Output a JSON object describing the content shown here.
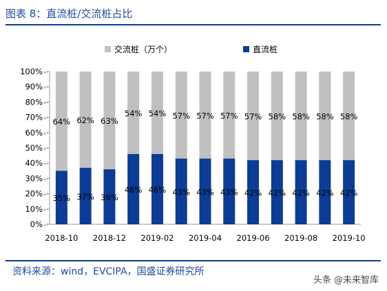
{
  "header": {
    "title": "图表 8：直流桩/交流桩占比"
  },
  "footer": {
    "source": "资料来源：wind，EVCIPA，国盛证券研究所"
  },
  "watermark": {
    "text": "头条 @未来智库"
  },
  "colors": {
    "ac": "#c0c0c0",
    "dc": "#0c3c94",
    "rule": "#0b3a8c",
    "titleText": "#1f4a9c"
  },
  "chart_data": {
    "type": "bar",
    "stacked": true,
    "categories": [
      "2018-10",
      "2018-11",
      "2018-12",
      "2019-01",
      "2019-02",
      "2019-03",
      "2019-04",
      "2019-05",
      "2019-06",
      "2019-07",
      "2019-08",
      "2019-09",
      "2019-10"
    ],
    "x_tick_labels": [
      "2018-10",
      "2018-12",
      "2019-02",
      "2019-04",
      "2019-06",
      "2019-08",
      "2019-10"
    ],
    "series": [
      {
        "name": "直流桩",
        "values": [
          35,
          37,
          36,
          46,
          46,
          43,
          43,
          43,
          42,
          42,
          42,
          42,
          42
        ],
        "color": "#0c3c94"
      },
      {
        "name": "交流桩（万个）",
        "values": [
          64,
          62,
          63,
          54,
          54,
          57,
          57,
          57,
          57,
          58,
          58,
          58,
          58
        ],
        "color": "#c0c0c0"
      }
    ],
    "y_ticks": [
      "0%",
      "10%",
      "20%",
      "30%",
      "40%",
      "50%",
      "60%",
      "70%",
      "80%",
      "90%",
      "100%"
    ],
    "ylim": [
      0,
      100
    ],
    "legend_position": "top",
    "grid": false
  }
}
